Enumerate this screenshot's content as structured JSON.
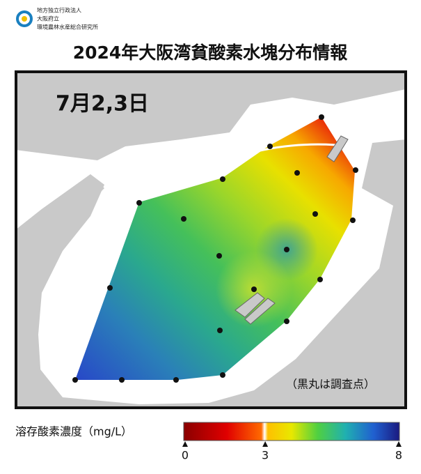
{
  "header": {
    "logo_lines": [
      "地方独立行政法人",
      "大阪府立",
      "環境農林水産総合研究所"
    ],
    "title": "2024年大阪湾貧酸素水塊分布情報"
  },
  "map": {
    "date": "7月2,3日",
    "note": "（黒丸は調査点）"
  },
  "legend": {
    "label": "溶存酸素濃度（mg/L）",
    "lim": [
      0,
      8
    ],
    "ticks": [
      0,
      3,
      8
    ]
  }
}
